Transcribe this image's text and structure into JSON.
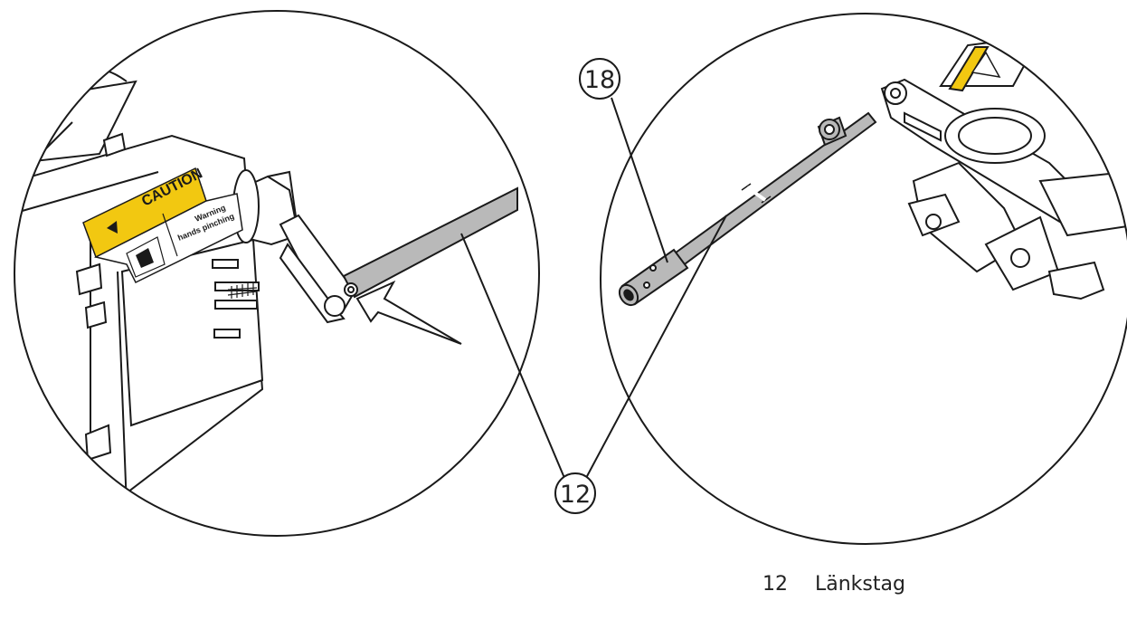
{
  "left_view": {
    "label_title": "CAUTION",
    "label_line1": "Warning",
    "label_line2": "hands pinching",
    "warning_symbol": "!"
  },
  "callouts": [
    {
      "id": "18"
    },
    {
      "id": "12"
    }
  ],
  "legend": [
    {
      "number": "12",
      "text": "Länkstag"
    }
  ],
  "colors": {
    "caution_yellow": "#f2c811",
    "rod_gray": "#b9b9b9",
    "line": "#1a1a1a"
  }
}
